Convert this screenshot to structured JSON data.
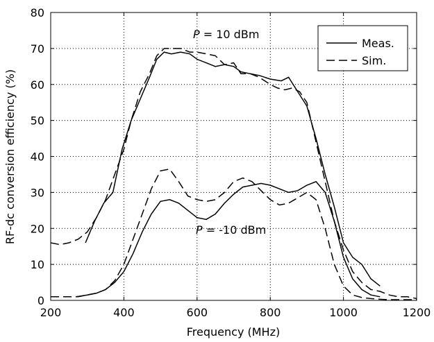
{
  "chart_data": {
    "type": "line",
    "xlabel": "Frequency (MHz)",
    "ylabel": "RF-dc conversion efficiency (%)",
    "xlim": [
      200,
      1200
    ],
    "ylim": [
      0,
      80
    ],
    "xticks": [
      200,
      400,
      600,
      800,
      1000,
      1200
    ],
    "yticks": [
      0,
      10,
      20,
      30,
      40,
      50,
      60,
      70,
      80
    ],
    "grid": true,
    "legend": {
      "position": "top-right",
      "entries": [
        "Meas.",
        "Sim."
      ]
    },
    "annotations": [
      {
        "prefix": "P",
        "text": " = 10 dBm"
      },
      {
        "prefix": "P",
        "text": " = -10 dBm"
      }
    ],
    "series": [
      {
        "name": "Meas.",
        "style": "solid",
        "level": "P = 10 dBm",
        "x": [
          295,
          320,
          345,
          370,
          395,
          420,
          445,
          470,
          490,
          510,
          530,
          555,
          580,
          600,
          625,
          650,
          675,
          700,
          720,
          745,
          770,
          800,
          830,
          850,
          875,
          900,
          925,
          950,
          975,
          1000,
          1025,
          1050,
          1075,
          1100
        ],
        "y": [
          16,
          22,
          27,
          30,
          42,
          50,
          56,
          62,
          67,
          69,
          68.5,
          69,
          68.5,
          67,
          66,
          65,
          65.5,
          65,
          63.5,
          63,
          62.5,
          61.5,
          61,
          62,
          58,
          54,
          45,
          35,
          26,
          16,
          12,
          10,
          6,
          4
        ]
      },
      {
        "name": "Sim.",
        "style": "dashed",
        "level": "P = 10 dBm",
        "x": [
          200,
          225,
          250,
          275,
          300,
          325,
          350,
          375,
          400,
          420,
          445,
          470,
          490,
          510,
          530,
          555,
          580,
          600,
          625,
          650,
          675,
          700,
          720,
          745,
          770,
          800,
          820,
          840,
          860,
          880,
          900,
          925,
          950,
          975,
          1000,
          1025,
          1050,
          1075,
          1100,
          1125,
          1150,
          1175,
          1200
        ],
        "y": [
          16,
          15.5,
          16,
          17,
          19,
          23,
          28,
          35,
          42,
          50,
          58,
          63,
          68,
          70,
          70,
          70,
          69,
          69,
          68.5,
          68,
          65.5,
          66,
          63,
          63,
          62,
          60,
          59,
          58.5,
          59,
          58,
          55,
          44,
          33,
          22,
          14,
          8,
          5,
          3,
          2.5,
          1.5,
          1,
          1,
          0.5
        ]
      },
      {
        "name": "Meas.",
        "style": "solid",
        "level": "P = -10 dBm",
        "x": [
          270,
          300,
          325,
          350,
          375,
          400,
          425,
          450,
          475,
          500,
          525,
          550,
          575,
          600,
          625,
          650,
          675,
          700,
          725,
          750,
          775,
          800,
          825,
          850,
          875,
          900,
          925,
          950,
          975,
          1000,
          1025,
          1050,
          1075,
          1100
        ],
        "y": [
          1,
          1.5,
          2,
          3,
          5,
          8,
          13,
          19,
          24,
          27.5,
          28,
          27,
          25,
          23,
          22.5,
          24,
          27,
          29.5,
          31.5,
          32,
          32.5,
          32,
          31,
          30,
          30.5,
          32,
          33,
          30,
          22,
          12,
          6,
          3,
          1.5,
          1
        ]
      },
      {
        "name": "Sim.",
        "style": "dashed",
        "level": "P = -10 dBm",
        "x": [
          200,
          225,
          250,
          275,
          300,
          325,
          350,
          375,
          400,
          425,
          450,
          475,
          500,
          525,
          550,
          575,
          600,
          625,
          650,
          675,
          700,
          725,
          750,
          775,
          800,
          825,
          850,
          875,
          900,
          925,
          950,
          975,
          1000,
          1025,
          1050,
          1075,
          1100,
          1125,
          1150,
          1175,
          1200
        ],
        "y": [
          1,
          1,
          1,
          1,
          1.5,
          2,
          3,
          5.5,
          10,
          17,
          24,
          31,
          36,
          36.5,
          33,
          29,
          28,
          27.5,
          28,
          30,
          33,
          34,
          33,
          30.5,
          28,
          26.5,
          27,
          28.5,
          30,
          28,
          20,
          10,
          4,
          1.5,
          0.8,
          0.5,
          0.3,
          0.2,
          0.2,
          0.2,
          0.2
        ]
      }
    ]
  }
}
